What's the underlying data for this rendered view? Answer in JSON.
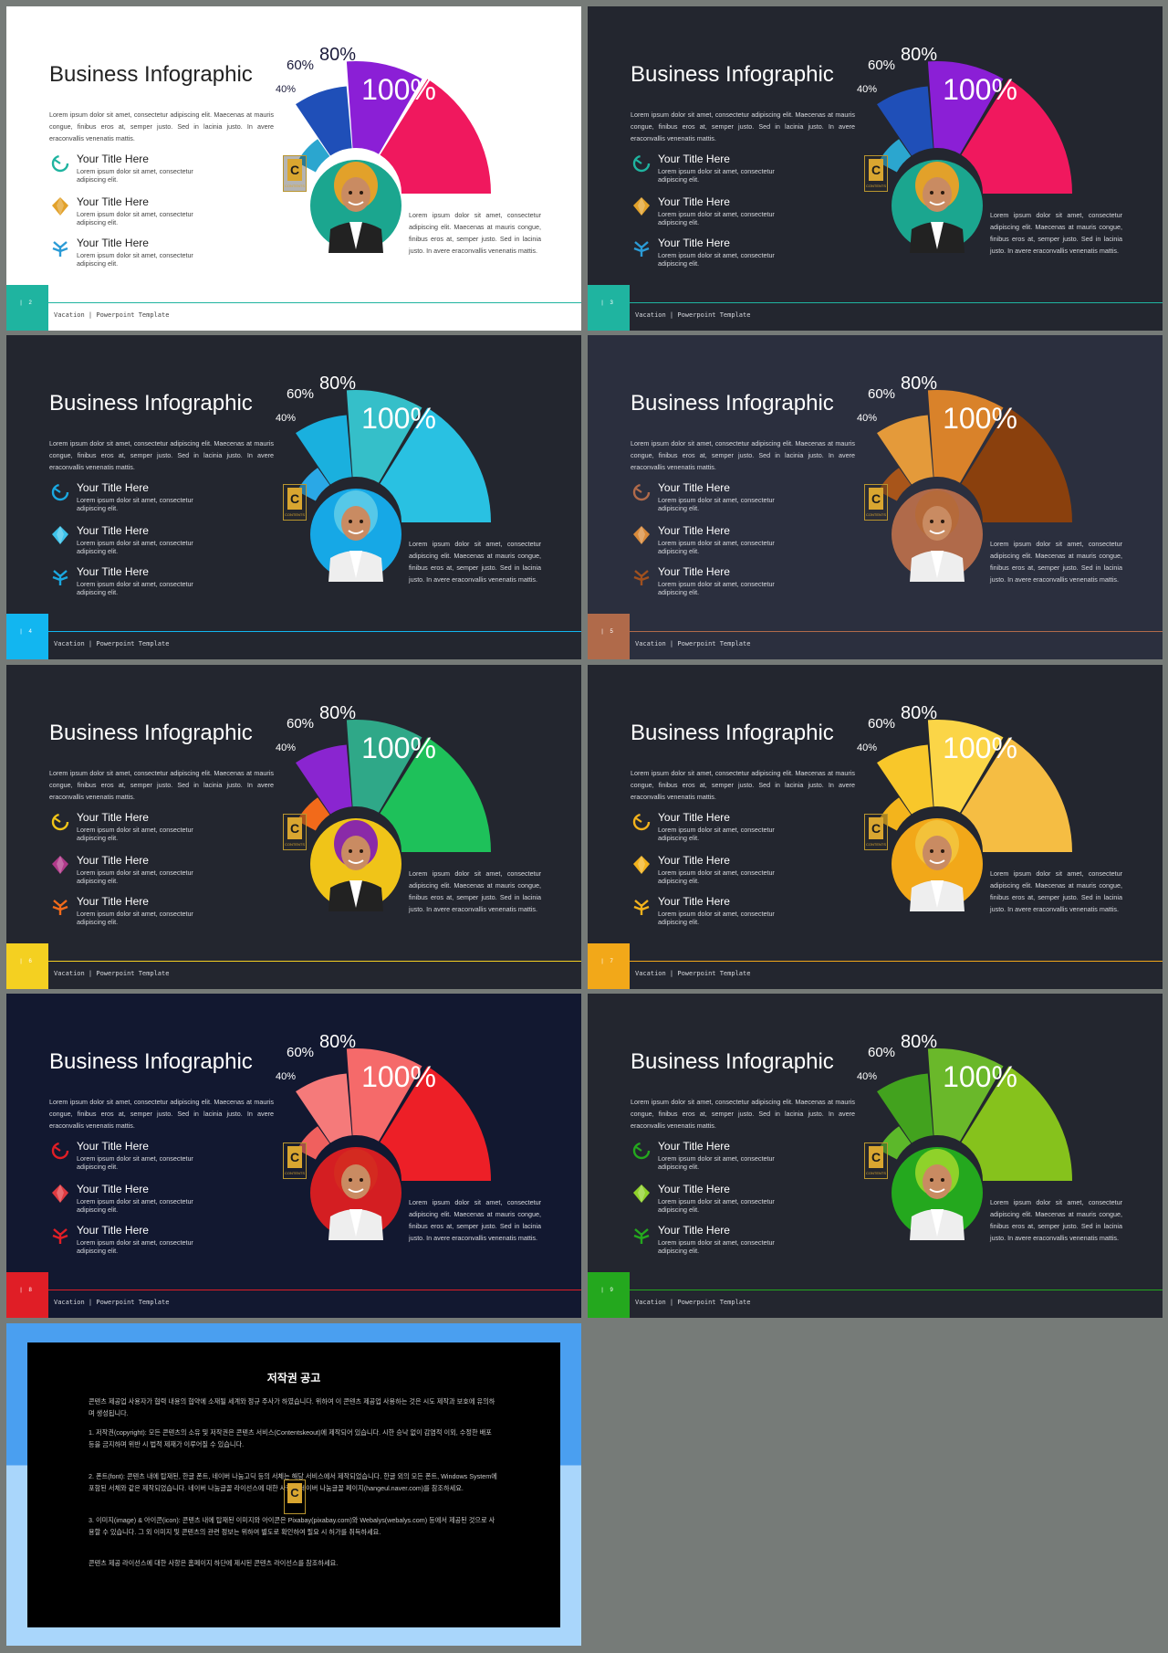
{
  "common": {
    "title": "Business Infographic",
    "intro": "Lorem ipsum dolor sit amet, consectetur adipiscing elit. Maecenas at mauris congue, finibus eros at, semper justo. Sed in lacinia justo. In avere eraconvallis venenatis mattis.",
    "items": [
      {
        "title": "Your Title Here",
        "desc": "Lorem ipsum dolor sit amet, consectetur adipiscing elit."
      },
      {
        "title": "Your Title Here",
        "desc": "Lorem ipsum dolor sit amet, consectetur adipiscing elit."
      },
      {
        "title": "Your Title Here",
        "desc": "Lorem ipsum dolor sit amet, consectetur adipiscing elit."
      }
    ],
    "body": "Lorem ipsum dolor sit amet, consectetur adipiscing elit. Maecenas at mauris congue, finibus eros at, semper justo. Sed in lacinia justo. In avere eraconvallis venenatis mattis.",
    "wedge_labels": [
      "40%",
      "60%",
      "80%",
      "100%"
    ],
    "footer": "Vacation | Powerpoint Template",
    "icons": [
      "refresh-circle-icon",
      "gem-icon",
      "plant-arrow-icon"
    ]
  },
  "slides": [
    {
      "page": "2",
      "bg": "#ffffff",
      "text": "#222222",
      "wedges": [
        "#2ba6cf",
        "#1f4fb8",
        "#8b1fd6",
        "#f0185e"
      ],
      "accent": "#1fb4a0",
      "avatar": "#1ba68f",
      "hair": "#e2a12a",
      "suit": "#222222",
      "icon_colors": [
        "#1fb4a0",
        "#e2a12a",
        "#2b9bd6"
      ]
    },
    {
      "page": "3",
      "bg": "#23262f",
      "text": "#ffffff",
      "wedges": [
        "#2ba6cf",
        "#1f4fb8",
        "#8b1fd6",
        "#f0185e"
      ],
      "accent": "#1fb4a0",
      "avatar": "#1ba68f",
      "hair": "#e2a12a",
      "suit": "#222222",
      "icon_colors": [
        "#1fb4a0",
        "#e2a12a",
        "#2b9bd6"
      ]
    },
    {
      "page": "4",
      "bg": "#23262f",
      "text": "#ffffff",
      "wedges": [
        "#2aa8e6",
        "#1ab0de",
        "#35bfc9",
        "#29c1e2"
      ],
      "accent": "#12b6f0",
      "avatar": "#16a8e6",
      "hair": "#56c8e8",
      "suit": "#eeeeee",
      "icon_colors": [
        "#1aa8e0",
        "#3ec3ea",
        "#1aa8e0"
      ]
    },
    {
      "page": "5",
      "bg": "#2b2f3e",
      "text": "#ffffff",
      "wedges": [
        "#a8551a",
        "#e49a3a",
        "#d9822a",
        "#8a400d"
      ],
      "accent": "#b06a4a",
      "avatar": "#b06a4a",
      "hair": "#b56a3a",
      "suit": "#eeeeee",
      "icon_colors": [
        "#b06a4a",
        "#d98a3a",
        "#a0501e"
      ]
    },
    {
      "page": "6",
      "bg": "#23262f",
      "text": "#ffffff",
      "wedges": [
        "#f26a1a",
        "#8a25d0",
        "#2fa888",
        "#1ec15a"
      ],
      "accent": "#f4d021",
      "avatar": "#f0c418",
      "hair": "#8a2aa8",
      "suit": "#222222",
      "icon_colors": [
        "#f0c418",
        "#b03a8a",
        "#f26a1a"
      ]
    },
    {
      "page": "7",
      "bg": "#23262f",
      "text": "#ffffff",
      "wedges": [
        "#f3b41c",
        "#f8c72a",
        "#fbd547",
        "#f5bd43"
      ],
      "accent": "#f2a819",
      "avatar": "#f2a819",
      "hair": "#f3c23a",
      "suit": "#eeeeee",
      "icon_colors": [
        "#f2b21c",
        "#f2b21c",
        "#f2b21c"
      ]
    },
    {
      "page": "8",
      "bg": "#121830",
      "text": "#ffffff",
      "wedges": [
        "#f0605e",
        "#f57a7a",
        "#f56a6a",
        "#ed1f27"
      ],
      "accent": "#e01e26",
      "avatar": "#d41e22",
      "hair": "#d42a20",
      "suit": "#eeeeee",
      "icon_colors": [
        "#e01e26",
        "#e03a40",
        "#e01e26"
      ]
    },
    {
      "page": "9",
      "bg": "#23262f",
      "text": "#ffffff",
      "wedges": [
        "#5cb82a",
        "#42a21e",
        "#6ab82a",
        "#86c21c"
      ],
      "accent": "#24a81e",
      "avatar": "#24a81e",
      "hair": "#8fd22a",
      "suit": "#eeeeee",
      "icon_colors": [
        "#24a81e",
        "#8fd22a",
        "#24a81e"
      ]
    }
  ],
  "notice": {
    "title": "저작권 공고",
    "p1": "콘텐츠 제공업 사용자가 협력 내용의 협약에 소재될 세계와 정규 주사가 하였습니다. 위하여 이 콘텐츠 제공업 사용하는 것은 시도 제작과 보호에 유의하며 생성됩니다.",
    "p2": "1. 저작권(copyright): 모든 콘텐츠의 소유 및 저작권은 콘텐츠 서비스(Contentskeout)에 제작되어 있습니다. 시한 승낙 없이 감염적 이외, 수정한 배포 등을 금지하며 위반 시 법적 제재가 이루어질 수 있습니다.",
    "p3": "2. 폰트(font): 콘텐츠 내에 탑재된, 한글 폰트, 네이버 나눔고딕 등의 서체는 해당 서비스에서 제작되었습니다. 한글 외의 모든 폰트, Windows System에 포함된 서체와 같은 제작되었습니다. 네이버 나눔글꼴 라이선스에 대한 사항은 네이버 나눔글꼴 페이지(hangeul.naver.com)를 참조하세요.",
    "p4": "3. 이미지(image) & 아이콘(icon): 콘텐츠 내에 탑재된 이미지와 아이콘은 Pixabay(pixabay.com)와 Webalys(webalys.com) 등에서 제공된 것으로 사용할 수 있습니다. 그 외 이미지 및 콘텐츠의 관련 정보는 위하여 별도로 확인하여 필요 시 허가를 취득하세요.",
    "p5": "콘텐츠 제공 라이선스에 대한 사항은 홈페이지 하단에 제시된 콘텐츠 라이선스를 참조하세요.",
    "logo_letter": "C"
  },
  "logo": {
    "letter": "C",
    "sub": "CONTENTS"
  },
  "colors": {
    "page_bg": "#767b78"
  }
}
